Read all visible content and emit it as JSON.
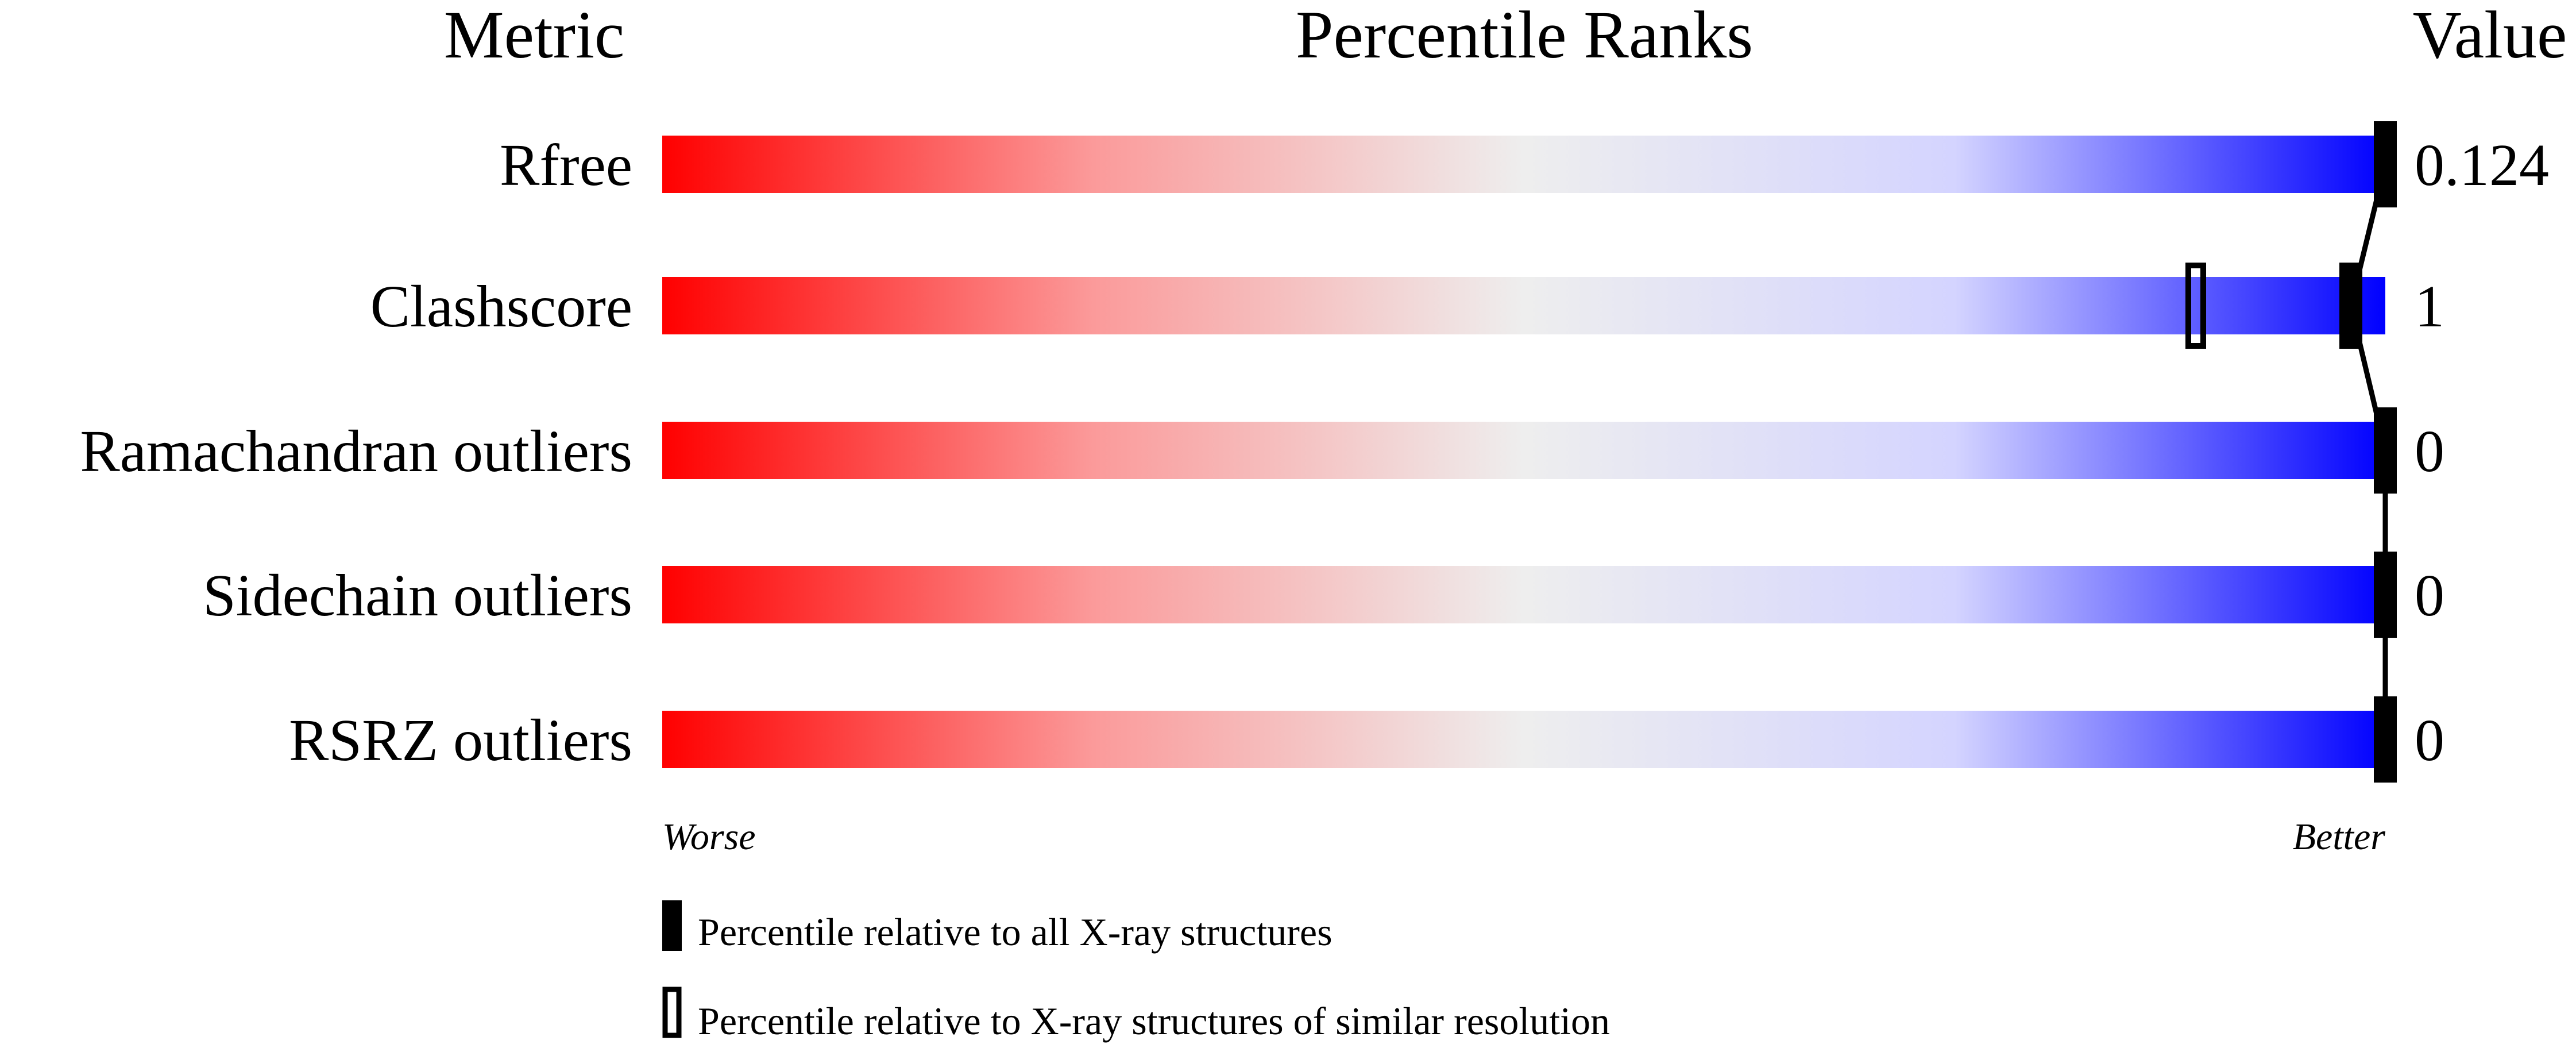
{
  "chart_data": {
    "type": "bar",
    "headers": {
      "metric": "Metric",
      "title": "Percentile Ranks",
      "value": "Value"
    },
    "categories": [
      "Rfree",
      "Clashscore",
      "Ramachandran outliers",
      "Sidechain outliers",
      "RSRZ outliers"
    ],
    "values": [
      "0.124",
      "1",
      "0",
      "0",
      "0"
    ],
    "series": [
      {
        "name": "Percentile relative to all X-ray structures",
        "marker": "filled",
        "values": [
          100,
          98,
          100,
          100,
          100
        ]
      },
      {
        "name": "Percentile relative to X-ray structures of similar resolution",
        "marker": "open",
        "values": [
          null,
          89,
          null,
          null,
          null
        ]
      }
    ],
    "xlim": [
      0,
      100
    ],
    "axis_labels": {
      "left": "Worse",
      "right": "Better"
    },
    "colors": {
      "worse": "#ff0000",
      "middle": "#eeeeee",
      "better": "#0000ff",
      "marker": "#000000"
    },
    "legend_position": "bottom-left"
  }
}
